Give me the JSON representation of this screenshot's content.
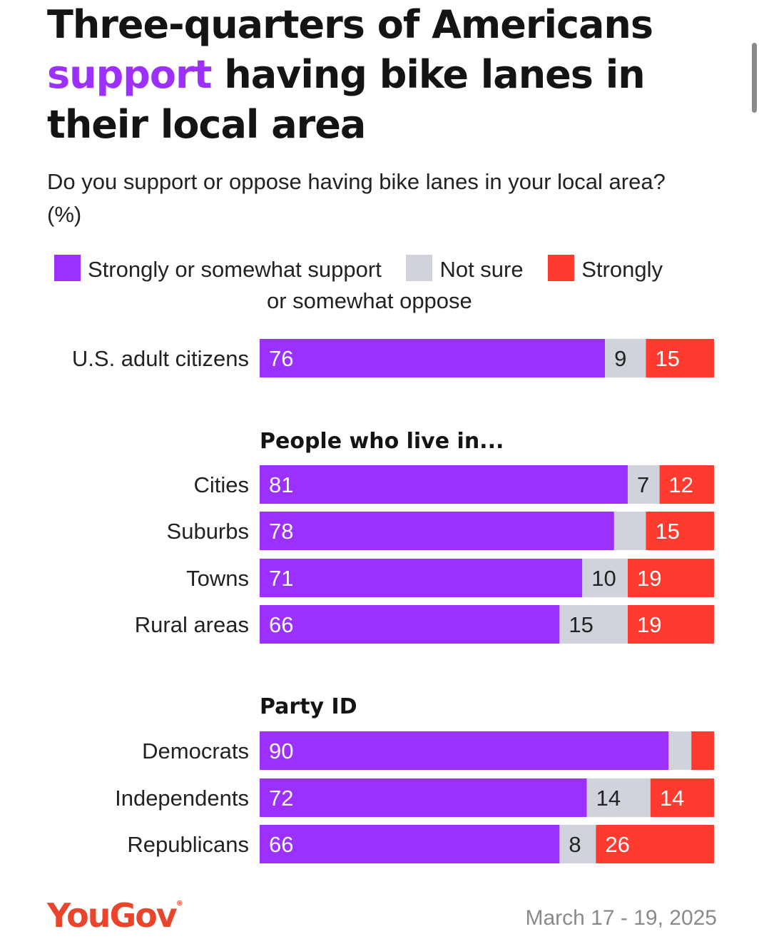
{
  "header": {
    "title_line1": "Three-quarters of Americans",
    "title_accent": "support",
    "title_rest_line2": "having bike lanes in",
    "title_line3": "their local area",
    "subtitle": "Do you support or oppose having bike lanes in your local area? (%)"
  },
  "colors": {
    "support": "#9b30ff",
    "not_sure": "#d0d3db",
    "oppose": "#ff3b2f",
    "label_on_color": "#ffffff",
    "label_on_grey": "#222222"
  },
  "legend": {
    "support": "Strongly or somewhat support",
    "not_sure": "Not sure",
    "oppose_line1": "Strongly",
    "oppose_line2": "or somewhat oppose"
  },
  "chart_data": {
    "type": "bar",
    "orientation": "horizontal",
    "stacked": true,
    "title": "Three-quarters of Americans support having bike lanes in their local area",
    "subtitle": "Do you support or oppose having bike lanes in your local area? (%)",
    "series": [
      {
        "name": "Strongly or somewhat support",
        "key": "support"
      },
      {
        "name": "Not sure",
        "key": "not_sure"
      },
      {
        "name": "Strongly or somewhat oppose",
        "key": "oppose"
      }
    ],
    "groups": [
      {
        "heading": "",
        "rows": [
          {
            "category": "U.S. adult citizens",
            "support": 76,
            "not_sure": 9,
            "oppose": 15,
            "labels": [
              "76",
              "9",
              "15"
            ]
          }
        ]
      },
      {
        "heading": "People who live in...",
        "rows": [
          {
            "category": "Cities",
            "support": 81,
            "not_sure": 7,
            "oppose": 12,
            "labels": [
              "81",
              "7",
              "12"
            ]
          },
          {
            "category": "Suburbs",
            "support": 78,
            "not_sure": 7,
            "oppose": 15,
            "labels": [
              "78",
              "",
              "15"
            ]
          },
          {
            "category": "Towns",
            "support": 71,
            "not_sure": 10,
            "oppose": 19,
            "labels": [
              "71",
              "10",
              "19"
            ]
          },
          {
            "category": "Rural areas",
            "support": 66,
            "not_sure": 15,
            "oppose": 19,
            "labels": [
              "66",
              "15",
              "19"
            ]
          }
        ]
      },
      {
        "heading": "Party ID",
        "rows": [
          {
            "category": "Democrats",
            "support": 90,
            "not_sure": 5,
            "oppose": 5,
            "labels": [
              "90",
              "",
              ""
            ]
          },
          {
            "category": "Independents",
            "support": 72,
            "not_sure": 14,
            "oppose": 14,
            "labels": [
              "72",
              "14",
              "14"
            ]
          },
          {
            "category": "Republicans",
            "support": 66,
            "not_sure": 8,
            "oppose": 26,
            "labels": [
              "66",
              "8",
              "26"
            ]
          }
        ]
      }
    ],
    "xlim": [
      0,
      100
    ]
  },
  "footer": {
    "brand": "YouGov",
    "date": "March 17 - 19, 2025"
  }
}
